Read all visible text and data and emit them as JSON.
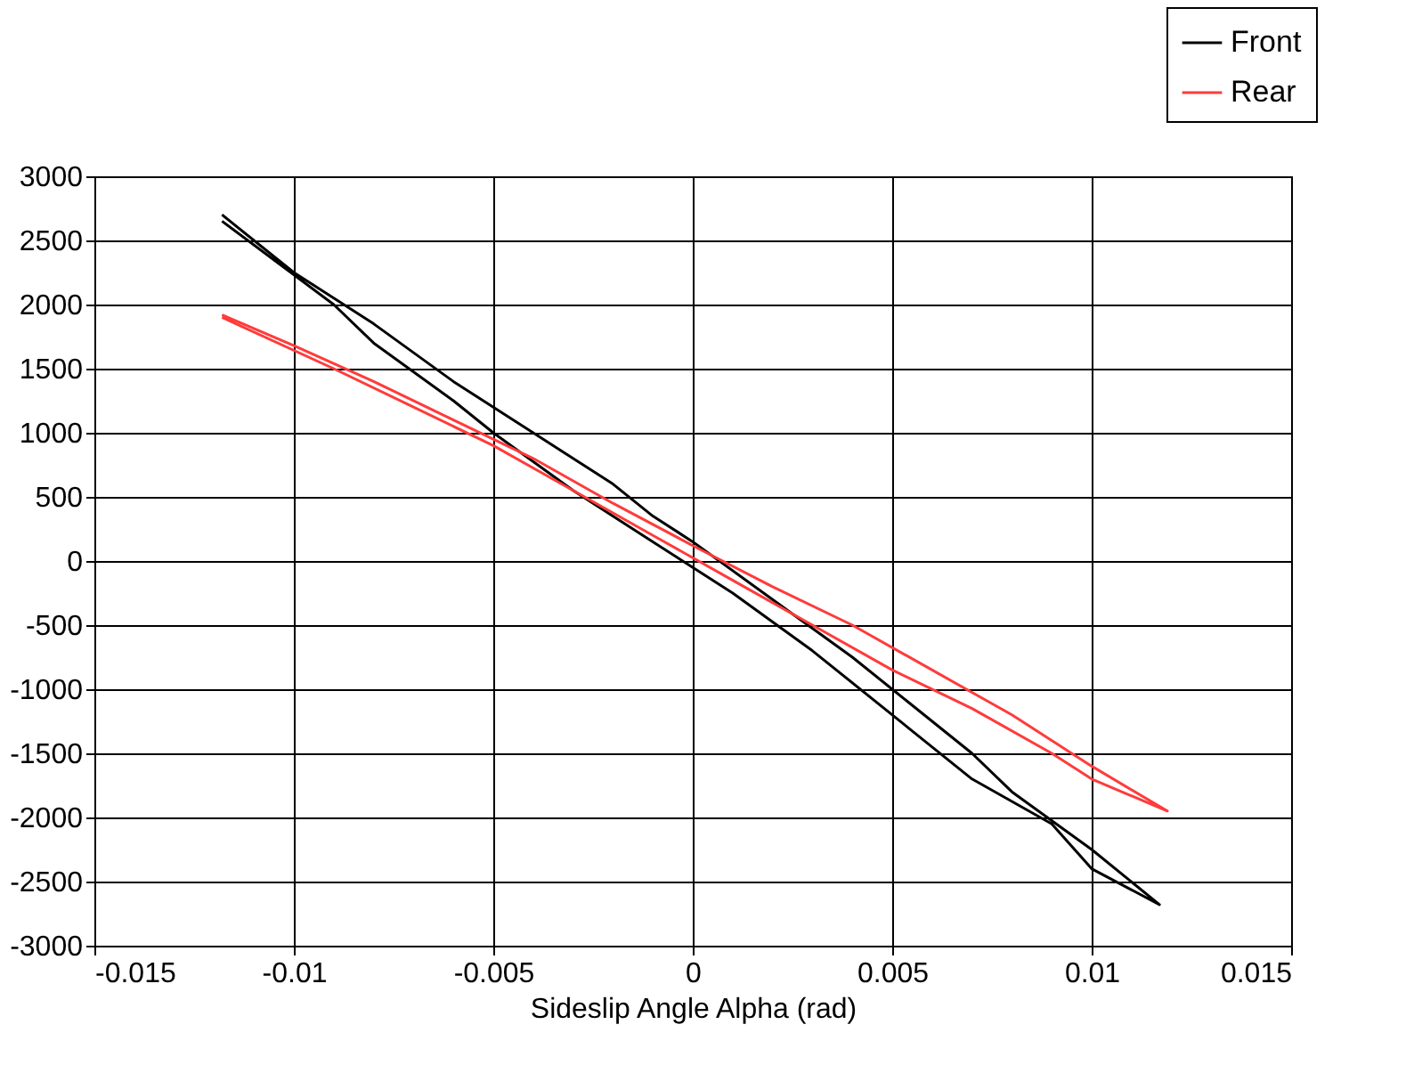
{
  "chart_data": {
    "type": "line",
    "xlabel": "Sideslip Angle Alpha (rad)",
    "series": [
      {
        "name": "Front",
        "color": "#000000",
        "x": [
          -0.0118,
          -0.01,
          -0.008,
          -0.006,
          -0.004,
          -0.002,
          -0.001,
          0,
          0.002,
          0.004,
          0.005,
          0.007,
          0.008,
          0.01,
          0.0117,
          0.01,
          0.009,
          0.007,
          0.006,
          0.003,
          0.001,
          0,
          -0.001,
          -0.003,
          -0.005,
          -0.006,
          -0.008,
          -0.009,
          -0.0118
        ],
        "values": [
          2700,
          2250,
          1850,
          1400,
          1000,
          600,
          350,
          150,
          -300,
          -750,
          -1000,
          -1500,
          -1800,
          -2250,
          -2680,
          -2400,
          -2050,
          -1700,
          -1450,
          -700,
          -250,
          -50,
          150,
          550,
          1000,
          1250,
          1700,
          2000,
          2650
        ]
      },
      {
        "name": "Rear",
        "color": "#ff3b3b",
        "x": [
          -0.0118,
          -0.01,
          -0.008,
          -0.006,
          -0.004,
          -0.002,
          0,
          0.002,
          0.004,
          0.006,
          0.008,
          0.01,
          0.0119,
          0.01,
          0.009,
          0.007,
          0.005,
          0.003,
          0.001,
          -0.001,
          -0.003,
          -0.005,
          -0.007,
          -0.009,
          -0.0118
        ],
        "values": [
          1920,
          1680,
          1400,
          1100,
          800,
          450,
          120,
          -200,
          -500,
          -850,
          -1200,
          -1600,
          -1950,
          -1700,
          -1500,
          -1150,
          -850,
          -500,
          -150,
          200,
          550,
          900,
          1200,
          1500,
          1900
        ]
      }
    ],
    "xlim": [
      -0.015,
      0.015
    ],
    "xticks": [
      -0.015,
      -0.01,
      -0.005,
      0,
      0.005,
      0.01,
      0.015
    ],
    "ylim": [
      -3000,
      3000
    ],
    "yticks": [
      -3000,
      -2500,
      -2000,
      -1500,
      -1000,
      -500,
      0,
      500,
      1000,
      1500,
      2000,
      2500,
      3000
    ],
    "grid": true,
    "legend": "top right",
    "marker": "none",
    "line_style": "solid"
  }
}
